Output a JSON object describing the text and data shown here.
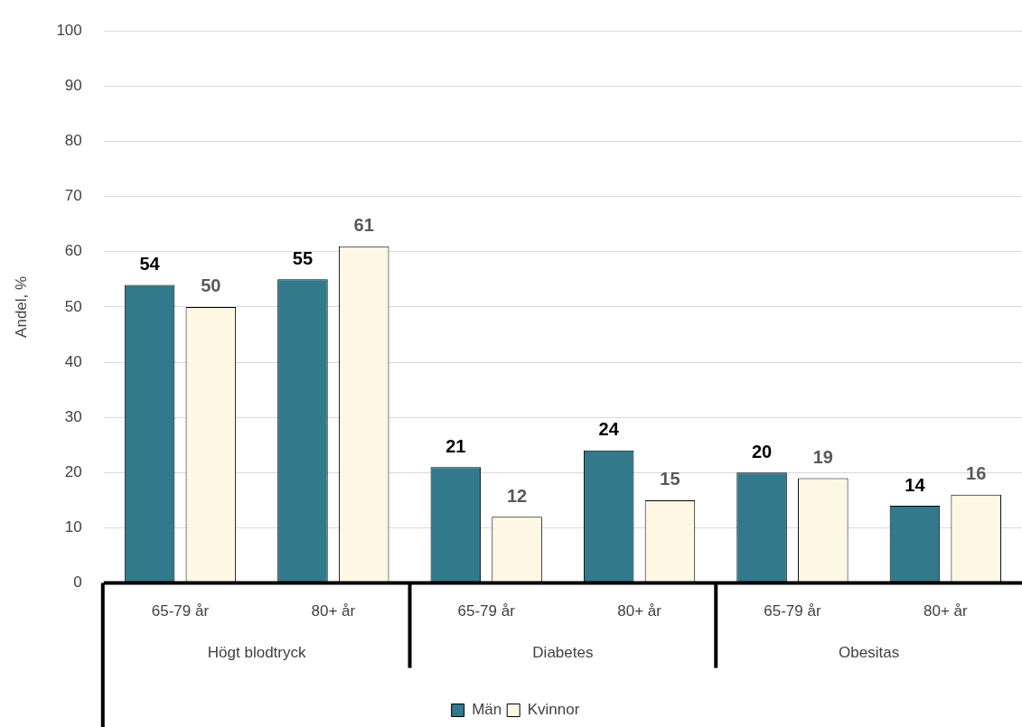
{
  "chart_data": {
    "type": "bar",
    "ylabel": "Andel, %",
    "categories": [
      "65-79 år",
      "80+ år",
      "65-79 år",
      "80+ år",
      "65-79 år",
      "80+ år"
    ],
    "annotations": [
      "Högt blodtryck",
      "Diabetes",
      "Obesitas"
    ],
    "series": [
      {
        "name": "Män",
        "color": "#31798b",
        "values": [
          54,
          55,
          21,
          24,
          20,
          14
        ]
      },
      {
        "name": "Kvinnor",
        "color": "#fdf7e4",
        "values": [
          50,
          61,
          12,
          15,
          19,
          16
        ]
      }
    ],
    "ylim": [
      0,
      100
    ],
    "yticks": [
      0,
      10,
      20,
      30,
      40,
      50,
      60,
      70,
      80,
      90,
      100
    ],
    "grid": "y",
    "legend": "bottom",
    "data_labels": true
  }
}
